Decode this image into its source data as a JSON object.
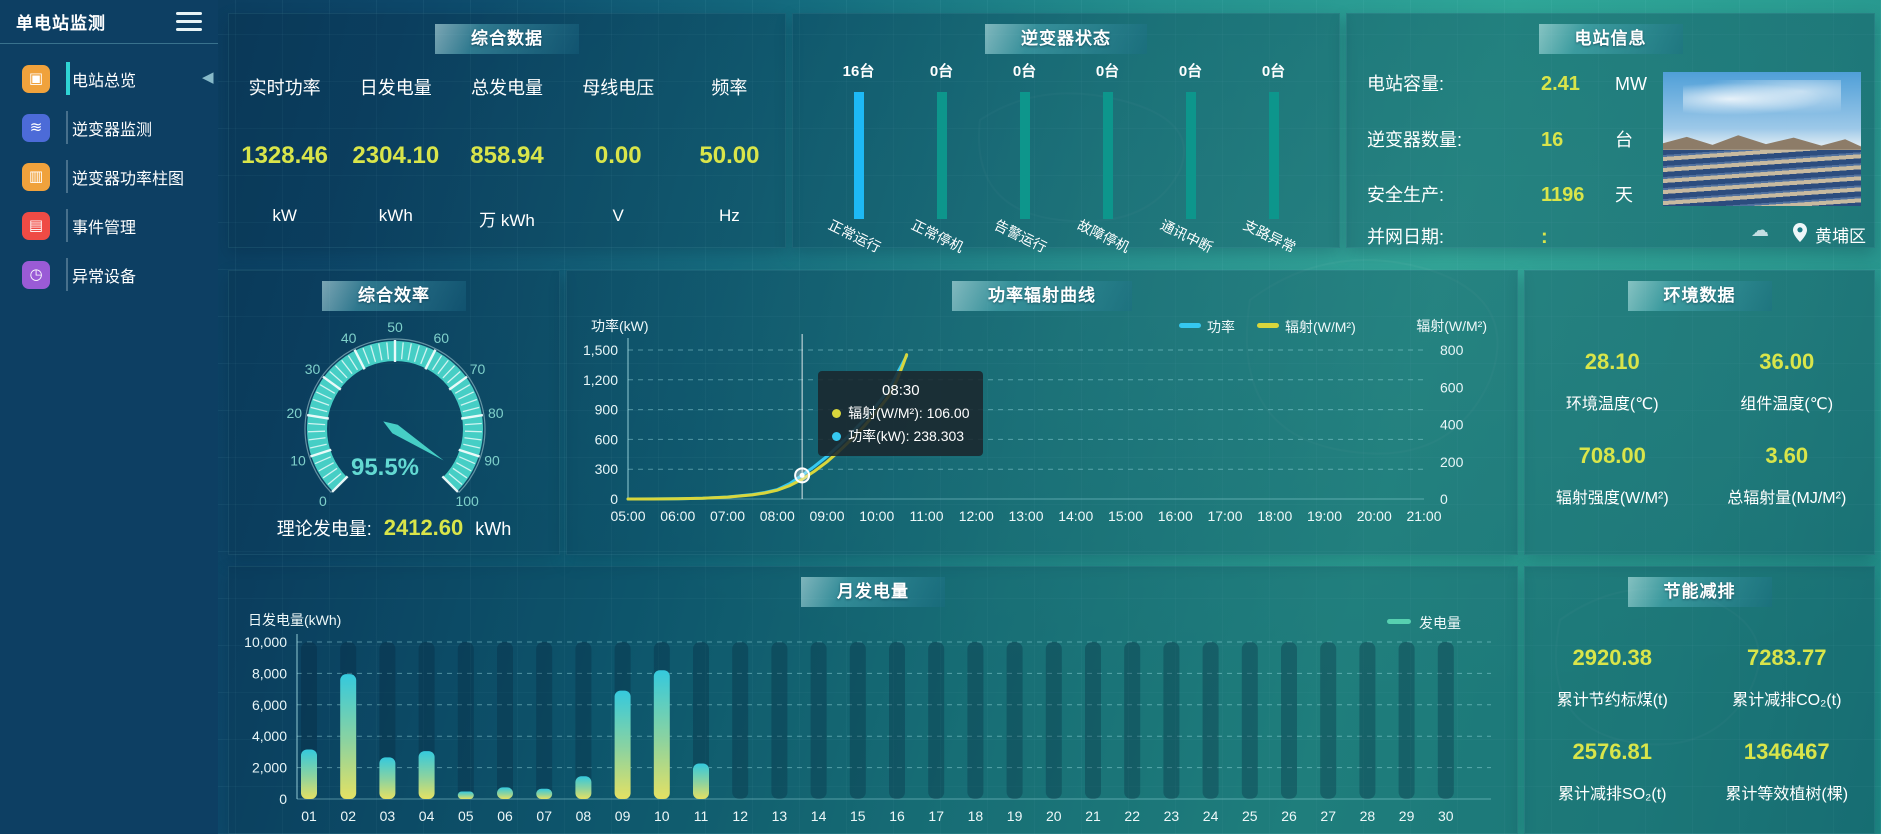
{
  "app": {
    "title": "单电站监测"
  },
  "sidebar": {
    "collapse_icon": "left-triangle",
    "items": [
      {
        "label": "电站总览",
        "icon": "overview-doc-icon",
        "glyph": "▣",
        "color": "#f0a23c",
        "active": true
      },
      {
        "label": "逆变器监测",
        "icon": "inverter-monitor-icon",
        "glyph": "≋",
        "color": "#4c6bd8",
        "active": false
      },
      {
        "label": "逆变器功率柱图",
        "icon": "power-bars-icon",
        "glyph": "▥",
        "color": "#f0a23c",
        "active": false
      },
      {
        "label": "事件管理",
        "icon": "event-note-icon",
        "glyph": "▤",
        "color": "#ef4b45",
        "active": false
      },
      {
        "label": "异常设备",
        "icon": "abnormal-device-icon",
        "glyph": "◷",
        "color": "#9a5bd6",
        "active": false
      }
    ]
  },
  "colors": {
    "value_yellow": "#d9e54a",
    "active_bar_blue": "#1db9f5",
    "idle_bar_teal": "#0d968c",
    "power_line": "#35c8f0",
    "radiation_line": "#d8d63c",
    "gauge_teal": "#46cec5"
  },
  "panels": {
    "summary": {
      "title": "综合数据",
      "metrics": [
        {
          "label": "实时功率",
          "value": "1328.46",
          "unit": "kW"
        },
        {
          "label": "日发电量",
          "value": "2304.10",
          "unit": "kWh"
        },
        {
          "label": "总发电量",
          "value": "858.94",
          "unit": "万 kWh"
        },
        {
          "label": "母线电压",
          "value": "0.00",
          "unit": "V"
        },
        {
          "label": "频率",
          "value": "50.00",
          "unit": "Hz"
        }
      ]
    },
    "inverter_status": {
      "title": "逆变器状态",
      "chart": {
        "type": "bar",
        "categories": [
          "正常运行",
          "正常停机",
          "告警运行",
          "故障停机",
          "通讯中断",
          "支路异常"
        ],
        "values": [
          16,
          0,
          0,
          0,
          0,
          0
        ],
        "unit": "台"
      }
    },
    "station_info": {
      "title": "电站信息",
      "rows": [
        {
          "label": "电站容量:",
          "value": "2.41",
          "unit": "MW"
        },
        {
          "label": "逆变器数量:",
          "value": "16",
          "unit": "台"
        },
        {
          "label": "安全生产:",
          "value": "1196",
          "unit": "天"
        },
        {
          "label": "并网日期:",
          "value": ":",
          "unit": ""
        }
      ],
      "location": "黄埔区",
      "weather_icon": "cloud-question-icon",
      "location_icon": "map-pin-icon",
      "photo": "solar-farm-photo"
    },
    "efficiency": {
      "title": "综合效率",
      "gauge": {
        "type": "gauge",
        "min": 0,
        "max": 100,
        "value": 95.5,
        "display": "95.5%",
        "tick_labels": [
          0,
          10,
          20,
          30,
          40,
          50,
          60,
          70,
          80,
          90,
          100
        ]
      },
      "footer_label": "理论发电量:",
      "footer_value": "2412.60",
      "footer_unit": "kWh"
    },
    "power_curve": {
      "title": "功率辐射曲线",
      "chart": {
        "type": "line",
        "x_labels": [
          "05:00",
          "06:00",
          "07:00",
          "08:00",
          "09:00",
          "10:00",
          "11:00",
          "12:00",
          "13:00",
          "14:00",
          "15:00",
          "16:00",
          "17:00",
          "18:00",
          "19:00",
          "20:00",
          "21:00"
        ],
        "x_start_min": 300,
        "x_end_min": 1260,
        "left_axis": {
          "title": "功率(kW)",
          "min": 0,
          "max": 1500,
          "ticks": [
            "0",
            "300",
            "600",
            "900",
            "1,200",
            "1,500"
          ]
        },
        "right_axis": {
          "title": "辐射(W/M²)",
          "min": 0,
          "max": 800,
          "ticks": [
            "0",
            "200",
            "400",
            "600",
            "800"
          ]
        },
        "series": [
          {
            "name": "功率",
            "axis": "left",
            "color": "#35c8f0",
            "points": [
              [
                300,
                0
              ],
              [
                330,
                1
              ],
              [
                360,
                3
              ],
              [
                390,
                8
              ],
              [
                420,
                20
              ],
              [
                450,
                45
              ],
              [
                465,
                65
              ],
              [
                480,
                95
              ],
              [
                495,
                155
              ],
              [
                510,
                238.3
              ],
              [
                525,
                330
              ],
              [
                540,
                430
              ],
              [
                555,
                545
              ],
              [
                570,
                670
              ],
              [
                585,
                800
              ],
              [
                600,
                945
              ],
              [
                615,
                1105
              ],
              [
                625,
                1270
              ],
              [
                632,
                1380
              ],
              [
                636,
                1440
              ]
            ]
          },
          {
            "name": "辐射(W/M²)",
            "axis": "right",
            "color": "#d8d63c",
            "points": [
              [
                300,
                0
              ],
              [
                330,
                0
              ],
              [
                360,
                1
              ],
              [
                390,
                4
              ],
              [
                420,
                10
              ],
              [
                450,
                22
              ],
              [
                465,
                32
              ],
              [
                480,
                47
              ],
              [
                495,
                72
              ],
              [
                510,
                106
              ],
              [
                525,
                150
              ],
              [
                540,
                200
              ],
              [
                555,
                258
              ],
              [
                570,
                322
              ],
              [
                585,
                392
              ],
              [
                600,
                470
              ],
              [
                615,
                556
              ],
              [
                625,
                645
              ],
              [
                632,
                725
              ],
              [
                636,
                775
              ]
            ]
          }
        ]
      },
      "tooltip": {
        "title": "08:30",
        "time_min": 510,
        "marker_series": 0,
        "marker_value": 238.303,
        "rows": [
          {
            "dot": "#d8d63c",
            "text": "辐射(W/M²): 106.00"
          },
          {
            "dot": "#35c8f0",
            "text": "功率(kW): 238.303"
          }
        ]
      }
    },
    "environment": {
      "title": "环境数据",
      "stats": [
        {
          "value": "28.10",
          "label": "环境温度(℃)"
        },
        {
          "value": "36.00",
          "label": "组件温度(℃)"
        },
        {
          "value": "708.00",
          "label": "辐射强度(W/M²)"
        },
        {
          "value": "3.60",
          "label": "总辐射量(MJ/M²)"
        }
      ]
    },
    "monthly": {
      "title": "月发电量",
      "legend": "发电量",
      "chart": {
        "type": "bar",
        "axis_title": "日发电量(kWh)",
        "y_ticks": [
          "0",
          "2,000",
          "4,000",
          "6,000",
          "8,000",
          "10,000"
        ],
        "y_max": 10000,
        "categories": [
          "01",
          "02",
          "03",
          "04",
          "05",
          "06",
          "07",
          "08",
          "09",
          "10",
          "11",
          "12",
          "13",
          "14",
          "15",
          "16",
          "17",
          "18",
          "19",
          "20",
          "21",
          "22",
          "23",
          "24",
          "25",
          "26",
          "27",
          "28",
          "29",
          "30"
        ],
        "values": [
          3150,
          7950,
          2650,
          3050,
          480,
          740,
          650,
          1450,
          6900,
          8200,
          2260,
          0,
          0,
          0,
          0,
          0,
          0,
          0,
          0,
          0,
          0,
          0,
          0,
          0,
          0,
          0,
          0,
          0,
          0,
          0
        ]
      }
    },
    "savings": {
      "title": "节能减排",
      "stats": [
        {
          "value": "2920.38",
          "label": "累计节约标煤(t)"
        },
        {
          "value": "7283.77",
          "label": "累计减排CO₂(t)"
        },
        {
          "value": "2576.81",
          "label": "累计减排SO₂(t)"
        },
        {
          "value": "1346467",
          "label": "累计等效植树(棵)"
        }
      ]
    }
  }
}
